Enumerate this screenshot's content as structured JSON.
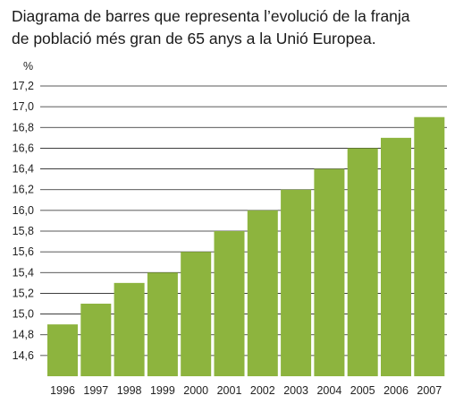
{
  "title_lines": [
    "Diagrama de barres que representa l’evolució de la franja",
    "de població més gran de 65 anys a la Unió Europea."
  ],
  "chart_data": {
    "type": "bar",
    "title": "Diagrama de barres que representa l’evolució de la franja de població més gran de 65 anys a la Unió Europea.",
    "ylabel": "%",
    "xlabel": "",
    "categories": [
      "1996",
      "1997",
      "1998",
      "1999",
      "2000",
      "2001",
      "2002",
      "2003",
      "2004",
      "2005",
      "2006",
      "2007"
    ],
    "values": [
      14.9,
      15.1,
      15.3,
      15.4,
      15.6,
      15.8,
      16.0,
      16.2,
      16.4,
      16.6,
      16.7,
      16.9
    ],
    "ylim": [
      14.4,
      17.2
    ],
    "yticks": [
      14.6,
      14.8,
      15.0,
      15.2,
      15.4,
      15.6,
      15.8,
      16.0,
      16.2,
      16.4,
      16.6,
      16.8,
      17.0,
      17.2
    ],
    "ytick_labels": [
      "14,6",
      "14,8",
      "15,0",
      "15,2",
      "15,4",
      "15,6",
      "15,8",
      "16,0",
      "16,2",
      "16,4",
      "16,6",
      "16,8",
      "17,0",
      "17,2"
    ],
    "grid": true,
    "bar_color": "#8db43e",
    "gridline_color": "#222222"
  }
}
